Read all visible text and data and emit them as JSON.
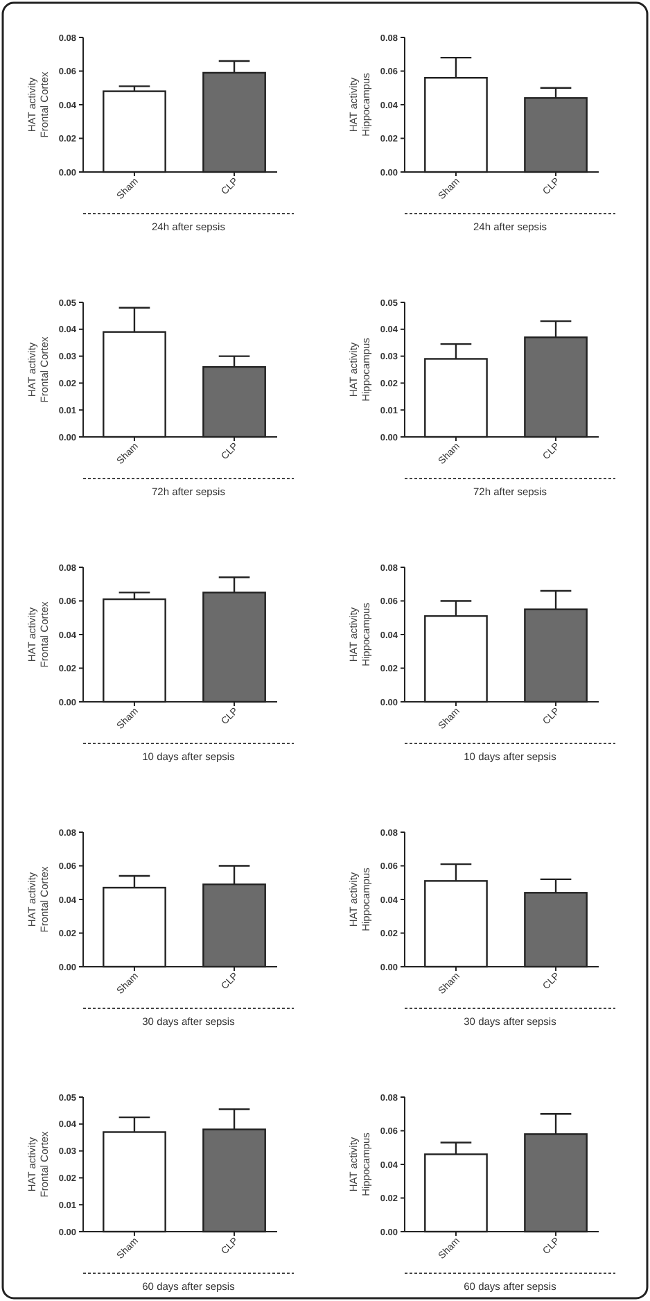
{
  "chart_data": [
    {
      "type": "bar",
      "xlabel": "24h after sepsis",
      "ylabel": "HAT activity\nFrontal Cortex",
      "categories": [
        "Sham",
        "CLP"
      ],
      "values": [
        0.048,
        0.059
      ],
      "colors": [
        "#ffffff",
        "#6b6b6b"
      ],
      "errors": [
        [
          0.048,
          0.051
        ],
        [
          0.059,
          0.066
        ]
      ],
      "ylim": [
        0,
        0.08
      ],
      "yticks": [
        {
          "value": 0,
          "label": "0.00"
        },
        {
          "value": 0.02,
          "label": "0.02"
        },
        {
          "value": 0.04,
          "label": "0.04"
        },
        {
          "value": 0.06,
          "label": "0.06"
        },
        {
          "value": 0.08,
          "label": "0.08"
        }
      ]
    },
    {
      "type": "bar",
      "xlabel": "24h after sepsis",
      "ylabel": "HAT activity\nHippocampus",
      "categories": [
        "Sham",
        "CLP"
      ],
      "values": [
        0.056,
        0.044
      ],
      "colors": [
        "#ffffff",
        "#6b6b6b"
      ],
      "errors": [
        [
          0.056,
          0.068
        ],
        [
          0.044,
          0.05
        ]
      ],
      "ylim": [
        0,
        0.08
      ],
      "yticks": [
        {
          "value": 0,
          "label": "0.00"
        },
        {
          "value": 0.02,
          "label": "0.02"
        },
        {
          "value": 0.04,
          "label": "0.04"
        },
        {
          "value": 0.06,
          "label": "0.06"
        },
        {
          "value": 0.08,
          "label": "0.08"
        }
      ]
    },
    {
      "type": "bar",
      "xlabel": "72h after sepsis",
      "ylabel": "HAT activity\nFrontal Cortex",
      "categories": [
        "Sham",
        "CLP"
      ],
      "values": [
        0.039,
        0.026
      ],
      "colors": [
        "#ffffff",
        "#6b6b6b"
      ],
      "errors": [
        [
          0.039,
          0.048
        ],
        [
          0.026,
          0.03
        ]
      ],
      "ylim": [
        0,
        0.05
      ],
      "yticks": [
        {
          "value": 0,
          "label": "0.00"
        },
        {
          "value": 0.01,
          "label": "0.01"
        },
        {
          "value": 0.02,
          "label": "0.02"
        },
        {
          "value": 0.03,
          "label": "0.03"
        },
        {
          "value": 0.04,
          "label": "0.04"
        },
        {
          "value": 0.05,
          "label": "0.05"
        }
      ]
    },
    {
      "type": "bar",
      "xlabel": "72h after sepsis",
      "ylabel": "HAT activity\nHippocampus",
      "categories": [
        "Sham",
        "CLP"
      ],
      "values": [
        0.029,
        0.037
      ],
      "colors": [
        "#ffffff",
        "#6b6b6b"
      ],
      "errors": [
        [
          0.029,
          0.0345
        ],
        [
          0.037,
          0.043
        ]
      ],
      "ylim": [
        0,
        0.05
      ],
      "yticks": [
        {
          "value": 0,
          "label": "0.00"
        },
        {
          "value": 0.01,
          "label": "0.01"
        },
        {
          "value": 0.02,
          "label": "0.02"
        },
        {
          "value": 0.03,
          "label": "0.03"
        },
        {
          "value": 0.04,
          "label": "0.04"
        },
        {
          "value": 0.05,
          "label": "0.05"
        }
      ]
    },
    {
      "type": "bar",
      "xlabel": "10 days after sepsis",
      "ylabel": "HAT activity\nFrontal Cortex",
      "categories": [
        "Sham",
        "CLP"
      ],
      "values": [
        0.061,
        0.065
      ],
      "colors": [
        "#ffffff",
        "#6b6b6b"
      ],
      "errors": [
        [
          0.061,
          0.065
        ],
        [
          0.065,
          0.074
        ]
      ],
      "ylim": [
        0,
        0.08
      ],
      "yticks": [
        {
          "value": 0,
          "label": "0.00"
        },
        {
          "value": 0.02,
          "label": "0.02"
        },
        {
          "value": 0.04,
          "label": "0.04"
        },
        {
          "value": 0.06,
          "label": "0.06"
        },
        {
          "value": 0.08,
          "label": "0.08"
        }
      ]
    },
    {
      "type": "bar",
      "xlabel": "10 days after sepsis",
      "ylabel": "HAT activity\nHippocampus",
      "categories": [
        "Sham",
        "CLP"
      ],
      "values": [
        0.051,
        0.055
      ],
      "colors": [
        "#ffffff",
        "#6b6b6b"
      ],
      "errors": [
        [
          0.051,
          0.06
        ],
        [
          0.055,
          0.066
        ]
      ],
      "ylim": [
        0,
        0.08
      ],
      "yticks": [
        {
          "value": 0,
          "label": "0.00"
        },
        {
          "value": 0.02,
          "label": "0.02"
        },
        {
          "value": 0.04,
          "label": "0.04"
        },
        {
          "value": 0.06,
          "label": "0.06"
        },
        {
          "value": 0.08,
          "label": "0.08"
        }
      ]
    },
    {
      "type": "bar",
      "xlabel": "30 days after sepsis",
      "ylabel": "HAT activity\nFrontal Cortex",
      "categories": [
        "Sham",
        "CLP"
      ],
      "values": [
        0.047,
        0.049
      ],
      "colors": [
        "#ffffff",
        "#6b6b6b"
      ],
      "errors": [
        [
          0.047,
          0.054
        ],
        [
          0.049,
          0.06
        ]
      ],
      "ylim": [
        0,
        0.08
      ],
      "yticks": [
        {
          "value": 0,
          "label": "0.00"
        },
        {
          "value": 0.02,
          "label": "0.02"
        },
        {
          "value": 0.04,
          "label": "0.04"
        },
        {
          "value": 0.06,
          "label": "0.06"
        },
        {
          "value": 0.08,
          "label": "0.08"
        }
      ]
    },
    {
      "type": "bar",
      "xlabel": "30 days after sepsis",
      "ylabel": "HAT activity\nHippocampus",
      "categories": [
        "Sham",
        "CLP"
      ],
      "values": [
        0.051,
        0.044
      ],
      "colors": [
        "#ffffff",
        "#6b6b6b"
      ],
      "errors": [
        [
          0.051,
          0.061
        ],
        [
          0.044,
          0.052
        ]
      ],
      "ylim": [
        0,
        0.08
      ],
      "yticks": [
        {
          "value": 0,
          "label": "0.00"
        },
        {
          "value": 0.02,
          "label": "0.02"
        },
        {
          "value": 0.04,
          "label": "0.04"
        },
        {
          "value": 0.06,
          "label": "0.06"
        },
        {
          "value": 0.08,
          "label": "0.08"
        }
      ]
    },
    {
      "type": "bar",
      "xlabel": "60 days after sepsis",
      "ylabel": "HAT activity\nFrontal Cortex",
      "categories": [
        "Sham",
        "CLP"
      ],
      "values": [
        0.037,
        0.038
      ],
      "colors": [
        "#ffffff",
        "#6b6b6b"
      ],
      "errors": [
        [
          0.037,
          0.0425
        ],
        [
          0.038,
          0.0455
        ]
      ],
      "ylim": [
        0,
        0.05
      ],
      "yticks": [
        {
          "value": 0,
          "label": "0.00"
        },
        {
          "value": 0.01,
          "label": "0.01"
        },
        {
          "value": 0.02,
          "label": "0.02"
        },
        {
          "value": 0.03,
          "label": "0.03"
        },
        {
          "value": 0.04,
          "label": "0.04"
        },
        {
          "value": 0.05,
          "label": "0.05"
        }
      ]
    },
    {
      "type": "bar",
      "xlabel": "60 days after sepsis",
      "ylabel": "HAT activity\nHippocampus",
      "categories": [
        "Sham",
        "CLP"
      ],
      "values": [
        0.046,
        0.058
      ],
      "colors": [
        "#ffffff",
        "#6b6b6b"
      ],
      "errors": [
        [
          0.046,
          0.053
        ],
        [
          0.058,
          0.07
        ]
      ],
      "ylim": [
        0,
        0.08
      ],
      "yticks": [
        {
          "value": 0,
          "label": "0.00"
        },
        {
          "value": 0.02,
          "label": "0.02"
        },
        {
          "value": 0.04,
          "label": "0.04"
        },
        {
          "value": 0.06,
          "label": "0.06"
        },
        {
          "value": 0.08,
          "label": "0.08"
        }
      ]
    }
  ]
}
